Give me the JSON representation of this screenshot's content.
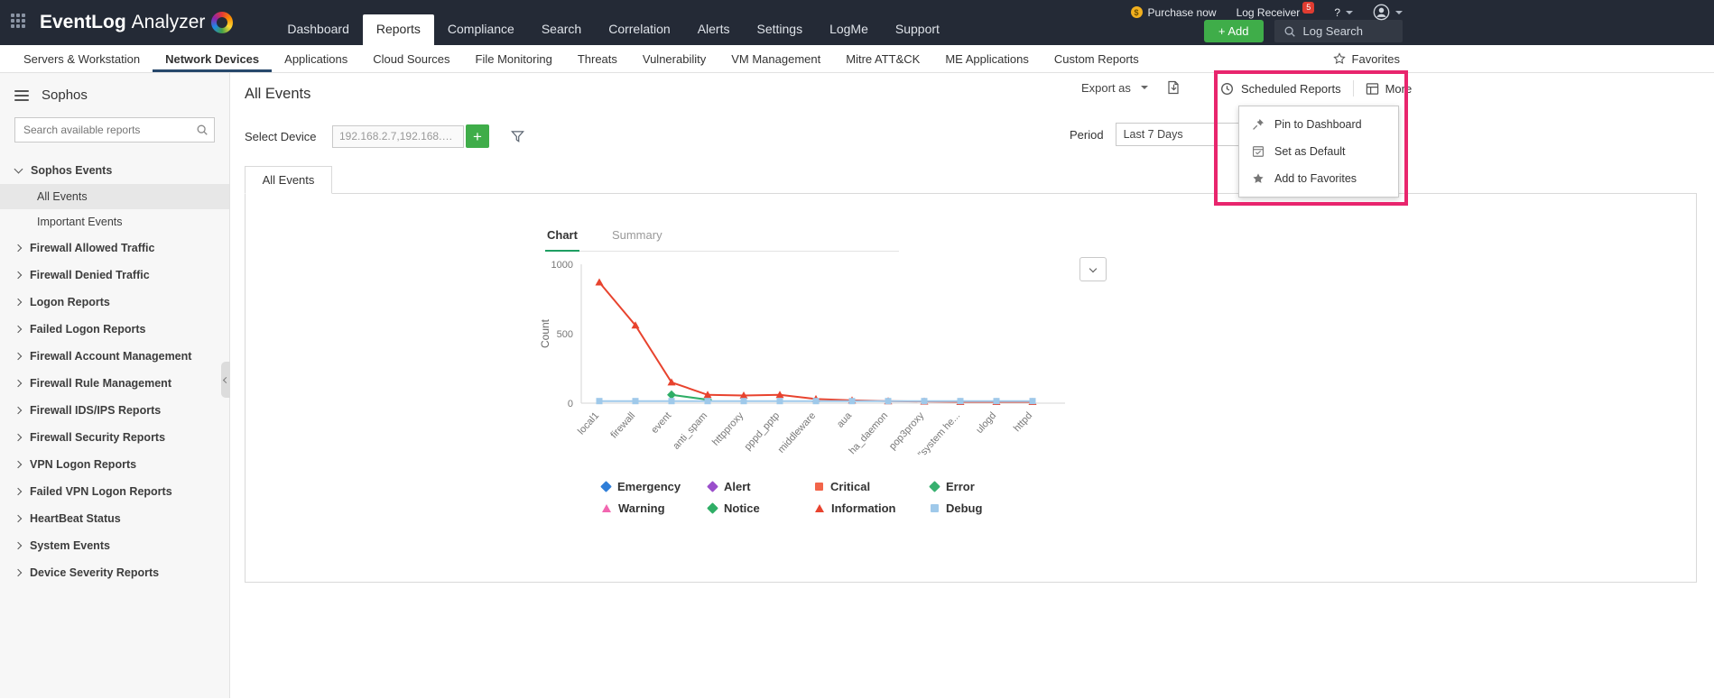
{
  "topbar": {
    "brand": {
      "primary": "EventLog",
      "secondary": "Analyzer"
    },
    "nav": [
      {
        "label": "Dashboard"
      },
      {
        "label": "Reports",
        "active": true
      },
      {
        "label": "Compliance"
      },
      {
        "label": "Search"
      },
      {
        "label": "Correlation"
      },
      {
        "label": "Alerts"
      },
      {
        "label": "Settings"
      },
      {
        "label": "LogMe"
      },
      {
        "label": "Support"
      }
    ],
    "utility": {
      "purchase": "Purchase now",
      "log_receiver": "Log Receiver",
      "badge": "5",
      "help": "?"
    },
    "actions": {
      "add": "+ Add",
      "log_search": "Log Search"
    }
  },
  "subnav": {
    "items": [
      {
        "label": "Servers & Workstation"
      },
      {
        "label": "Network Devices",
        "active": true
      },
      {
        "label": "Applications"
      },
      {
        "label": "Cloud Sources"
      },
      {
        "label": "File Monitoring"
      },
      {
        "label": "Threats"
      },
      {
        "label": "Vulnerability"
      },
      {
        "label": "VM Management"
      },
      {
        "label": "Mitre ATT&CK"
      },
      {
        "label": "ME Applications"
      },
      {
        "label": "Custom Reports"
      }
    ],
    "favorites": "Favorites"
  },
  "sidebar": {
    "title": "Sophos",
    "search_placeholder": "Search available reports",
    "tree": [
      {
        "label": "Sophos Events",
        "type": "parent-open"
      },
      {
        "label": "All Events",
        "type": "child",
        "selected": true
      },
      {
        "label": "Important Events",
        "type": "child"
      },
      {
        "label": "Firewall Allowed Traffic",
        "type": "parent"
      },
      {
        "label": "Firewall Denied Traffic",
        "type": "parent"
      },
      {
        "label": "Logon Reports",
        "type": "parent"
      },
      {
        "label": "Failed Logon Reports",
        "type": "parent"
      },
      {
        "label": "Firewall Account Management",
        "type": "parent"
      },
      {
        "label": "Firewall Rule Management",
        "type": "parent"
      },
      {
        "label": "Firewall IDS/IPS Reports",
        "type": "parent"
      },
      {
        "label": "Firewall Security Reports",
        "type": "parent"
      },
      {
        "label": "VPN Logon Reports",
        "type": "parent"
      },
      {
        "label": "Failed VPN Logon Reports",
        "type": "parent"
      },
      {
        "label": "HeartBeat Status",
        "type": "parent"
      },
      {
        "label": "System Events",
        "type": "parent"
      },
      {
        "label": "Device Severity Reports",
        "type": "parent"
      }
    ]
  },
  "page": {
    "title": "All Events",
    "export_label": "Export as",
    "scheduled_reports": "Scheduled Reports",
    "more_label": "More",
    "menu": [
      {
        "label": "Pin to Dashboard"
      },
      {
        "label": "Set as Default"
      },
      {
        "label": "Add to Favorites"
      }
    ],
    "select_device_label": "Select Device",
    "device_value": "192.168.2.7,192.168.11...",
    "period_label": "Period",
    "period_value": "Last 7 Days",
    "report_tab": "All Events",
    "view_tabs": {
      "chart": "Chart",
      "summary": "Summary"
    }
  },
  "colors": {
    "header_bg": "#242a36",
    "accent_green": "#3fad49",
    "annotation_pink": "#e8256d",
    "active_chart_tab_underline": "#1e9e62",
    "badge_red": "#e03c31"
  },
  "chart_data": {
    "type": "line",
    "title": "",
    "xlabel": "",
    "ylabel": "Count",
    "ylim": [
      0,
      1000
    ],
    "yticks": [
      0,
      500,
      1000
    ],
    "grid": false,
    "legend_position": "bottom",
    "categories": [
      "local1",
      "firewall",
      "event",
      "anti_spam",
      "httpproxy",
      "pppd_pptp",
      "middleware",
      "aua",
      "ha_daemon",
      "pop3proxy",
      "\"system he...",
      "ulogd",
      "httpd"
    ],
    "series": [
      {
        "name": "Emergency",
        "color": "#2f7ed8",
        "marker": "diamond",
        "values": []
      },
      {
        "name": "Alert",
        "color": "#9a4ecb",
        "marker": "diamond",
        "values": []
      },
      {
        "name": "Critical",
        "color": "#f2654a",
        "marker": "square",
        "values": []
      },
      {
        "name": "Error",
        "color": "#37b06f",
        "marker": "diamond",
        "values": []
      },
      {
        "name": "Warning",
        "color": "#f266b0",
        "marker": "triangle",
        "values": []
      },
      {
        "name": "Notice",
        "color": "#2fae66",
        "marker": "diamond",
        "values": [
          null,
          null,
          60,
          25,
          null,
          null,
          null,
          null,
          null,
          null,
          null,
          null,
          null
        ]
      },
      {
        "name": "Information",
        "color": "#e8432e",
        "marker": "triangle",
        "values": [
          870,
          560,
          150,
          60,
          55,
          60,
          30,
          20,
          15,
          12,
          10,
          10,
          10
        ]
      },
      {
        "name": "Debug",
        "color": "#9fc9ea",
        "marker": "square",
        "values": [
          15,
          15,
          15,
          15,
          15,
          15,
          15,
          15,
          15,
          15,
          15,
          15,
          15
        ]
      }
    ]
  }
}
